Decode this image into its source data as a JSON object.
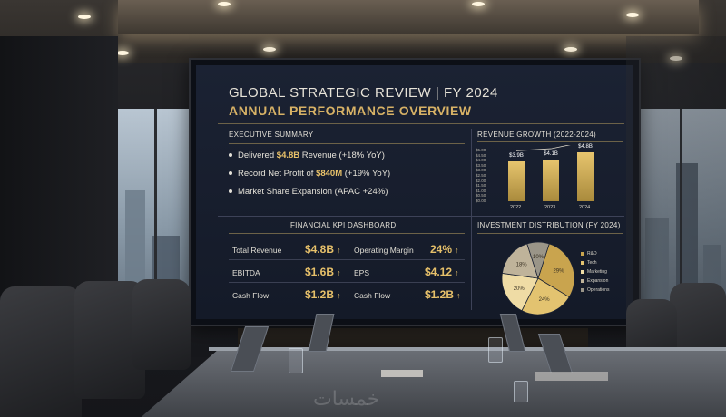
{
  "slide": {
    "title": "GLOBAL STRATEGIC REVIEW | FY 2024",
    "subtitle": "ANNUAL PERFORMANCE OVERVIEW",
    "accent_color": "#d8b266"
  },
  "executive_summary": {
    "heading": "EXECUTIVE SUMMARY",
    "bullets": [
      {
        "prefix": "Delivered ",
        "highlight": "$4.8B",
        "suffix": " Revenue (+18% YoY)"
      },
      {
        "prefix": "Record Net Profit of ",
        "highlight": "$840M",
        "suffix": " (+19% YoY)"
      },
      {
        "prefix": "Market Share Expansion (APAC +24%)",
        "highlight": "",
        "suffix": ""
      }
    ]
  },
  "kpi_dashboard": {
    "heading": "FINANCIAL KPI DASHBOARD",
    "items": [
      {
        "label": "Total Revenue",
        "value": "$4.8B",
        "arrow": "↑"
      },
      {
        "label": "Operating Margin",
        "value": "24%",
        "arrow": "↑"
      },
      {
        "label": "EBITDA",
        "value": "$1.6B",
        "arrow": "↑"
      },
      {
        "label": "EPS",
        "value": "$4.12",
        "arrow": "↑"
      },
      {
        "label": "Cash Flow",
        "value": "$1.2B",
        "arrow": "↑"
      },
      {
        "label": "Cash Flow",
        "value": "$1.2B",
        "arrow": "↑"
      }
    ]
  },
  "revenue_growth": {
    "heading": "REVENUE GROWTH (2022-2024)",
    "y_ticks": [
      "$5.00",
      "$4.50",
      "$4.00",
      "$3.50",
      "$3.00",
      "$2.50",
      "$2.00",
      "$1.50",
      "$1.00",
      "$0.50",
      "$0.00"
    ],
    "bars": [
      {
        "year": "2022",
        "value": 3.9,
        "label": "$3.9B"
      },
      {
        "year": "2023",
        "value": 4.1,
        "label": "$4.1B"
      },
      {
        "year": "2024",
        "value": 4.8,
        "label": "$4.8B"
      }
    ]
  },
  "investment_distribution": {
    "heading": "INVESTMENT DISTRIBUTION (FY 2024)",
    "slices": [
      {
        "name": "R&D",
        "percent": 29,
        "label": "29%",
        "color": "#c9a44e"
      },
      {
        "name": "Tech",
        "percent": 24,
        "label": "24%",
        "color": "#e3c370"
      },
      {
        "name": "Marketing",
        "percent": 20,
        "label": "20%",
        "color": "#efdca5"
      },
      {
        "name": "Expansion",
        "percent": 18,
        "label": "18%",
        "color": "#bfb39a"
      },
      {
        "name": "Operations",
        "percent": 10,
        "label": "10%",
        "color": "#9a9588"
      }
    ]
  },
  "watermark": "خمسات"
}
